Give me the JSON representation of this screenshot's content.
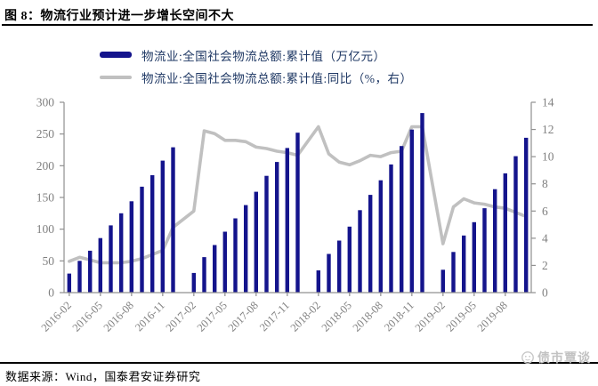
{
  "header": {
    "title": "图 8：物流行业预计进一步增长空间不大"
  },
  "legend": {
    "items": [
      {
        "label": "物流业:全国社会物流总额:累计值（万亿元）",
        "swatch": "bar",
        "color": "#14148c"
      },
      {
        "label": "物流业:全国社会物流总额:累计值:同比（%，右）",
        "swatch": "line",
        "color": "#c0c0c0"
      }
    ]
  },
  "chart_data": {
    "type": "bar+line",
    "title": "",
    "x": [
      "2016-02",
      "2016-03",
      "2016-04",
      "2016-05",
      "2016-06",
      "2016-07",
      "2016-08",
      "2016-09",
      "2016-10",
      "2016-11",
      "2016-12",
      "2017-02",
      "2017-03",
      "2017-04",
      "2017-05",
      "2017-06",
      "2017-07",
      "2017-08",
      "2017-09",
      "2017-10",
      "2017-11",
      "2017-12",
      "2018-02",
      "2018-03",
      "2018-04",
      "2018-05",
      "2018-06",
      "2018-07",
      "2018-08",
      "2018-09",
      "2018-10",
      "2018-11",
      "2018-12",
      "2019-02",
      "2019-03",
      "2019-04",
      "2019-05",
      "2019-06",
      "2019-07",
      "2019-08",
      "2019-09",
      "2019-10"
    ],
    "series": [
      {
        "name": "物流业:全国社会物流总额:累计值（万亿元）",
        "type": "bar",
        "axis": "left",
        "color": "#14148c",
        "values": [
          30,
          50,
          66,
          86,
          106,
          125,
          144,
          167,
          185,
          208,
          229,
          31,
          56,
          75,
          96,
          117,
          138,
          159,
          184,
          206,
          228,
          252,
          35,
          61,
          82,
          104,
          130,
          154,
          177,
          202,
          231,
          257,
          283,
          36,
          64,
          90,
          111,
          133,
          163,
          188,
          215,
          244
        ]
      },
      {
        "name": "物流业:全国社会物流总额:累计值:同比（%，右）",
        "type": "line",
        "axis": "right",
        "color": "#c0c0c0",
        "values": [
          2.3,
          2.6,
          2.4,
          2.2,
          2.2,
          2.2,
          2.3,
          2.5,
          2.8,
          3.1,
          4.8,
          6.0,
          11.9,
          11.7,
          11.2,
          11.2,
          11.1,
          10.7,
          10.6,
          10.4,
          10.3,
          10.1,
          12.2,
          10.2,
          9.6,
          9.4,
          9.7,
          10.1,
          10.0,
          10.3,
          10.4,
          12.2,
          12.2,
          3.6,
          6.3,
          6.9,
          6.6,
          6.5,
          6.3,
          6.2,
          5.9,
          5.6
        ]
      }
    ],
    "x_tick_labels": [
      "2016-02",
      "2016-05",
      "2016-08",
      "2016-11",
      "2017-02",
      "2017-05",
      "2017-08",
      "2017-11",
      "2018-02",
      "2018-05",
      "2018-08",
      "2018-11",
      "2019-02",
      "2019-05",
      "2019-08"
    ],
    "left_axis": {
      "min": 0,
      "max": 300,
      "ticks": [
        0,
        50,
        100,
        150,
        200,
        250,
        300
      ]
    },
    "right_axis": {
      "min": 0,
      "max": 14,
      "ticks": [
        0,
        2,
        4,
        6,
        8,
        10,
        12,
        14
      ]
    },
    "grid": false,
    "legend_position": "top",
    "axis_color": "#909090",
    "tick_label_color": "#808080"
  },
  "footer": {
    "source": "数据来源：Wind，国泰君安证券研究",
    "watermark": "债市覃谈"
  }
}
